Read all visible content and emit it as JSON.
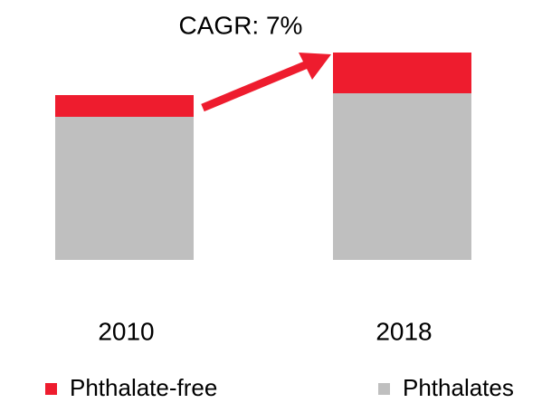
{
  "chart_data": {
    "type": "stacked_bar",
    "annotation": "CAGR: 7%",
    "categories": [
      "2010",
      "2018"
    ],
    "series": [
      {
        "name": "Phthalate-free",
        "color": "#ee1c2e",
        "values": [
          24,
          45
        ]
      },
      {
        "name": "Phthalates",
        "color": "#bfbfbf",
        "values": [
          158,
          184
        ]
      }
    ],
    "legend": "bottom"
  }
}
